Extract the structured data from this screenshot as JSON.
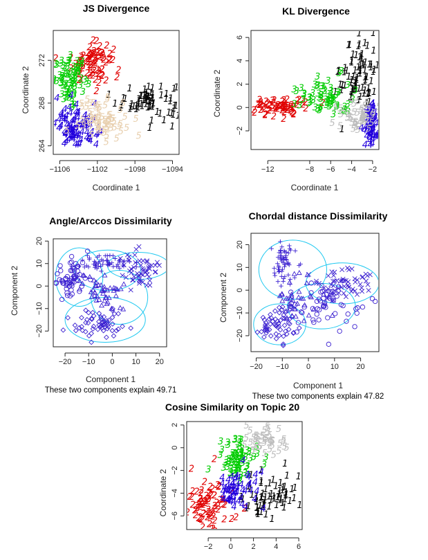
{
  "colors": {
    "1": "#000000",
    "2": "#e00000",
    "3": "#00cc00",
    "4": "#2200dd",
    "5_tan": "#e8cfae",
    "5_grey": "#bdbdbd",
    "clusplot_points": "#3a1fd0",
    "clusplot_bubbles": "#1ec8f0"
  },
  "chart_data": [
    {
      "id": "js",
      "type": "scatter",
      "title": "JS Divergence",
      "xlabel": "Coordinate 1",
      "ylabel": "Coordinate 2",
      "xlim": [
        -1106.7,
        -1093.3
      ],
      "ylim": [
        263.2,
        274.8
      ],
      "xticks": [
        -1106,
        -1102,
        -1098,
        -1094
      ],
      "yticks": [
        264,
        268,
        272
      ],
      "grid": false,
      "markers": "cluster digits",
      "clusters": [
        {
          "label": "1",
          "color_key": "1",
          "cx": -1096.5,
          "cy": 268.3,
          "sx": 1.7,
          "sy": 0.9,
          "n": 70
        },
        {
          "label": "2",
          "color_key": "2",
          "cx": -1102.6,
          "cy": 271.9,
          "sx": 1.1,
          "sy": 0.9,
          "n": 80
        },
        {
          "label": "3",
          "color_key": "3",
          "cx": -1104.8,
          "cy": 270.2,
          "sx": 0.9,
          "sy": 1.0,
          "n": 75
        },
        {
          "label": "4",
          "color_key": "4",
          "cx": -1104.2,
          "cy": 265.8,
          "sx": 1.1,
          "sy": 1.0,
          "n": 85
        },
        {
          "label": "5",
          "color_key": "5_tan",
          "cx": -1101.5,
          "cy": 266.6,
          "sx": 1.3,
          "sy": 0.9,
          "n": 70
        }
      ]
    },
    {
      "id": "kl",
      "type": "scatter",
      "title": "KL Divergence",
      "xlabel": "Coordinate 1",
      "ylabel": "Coordinate 2",
      "xlim": [
        -13.6,
        -1.4
      ],
      "ylim": [
        -3.6,
        6.6
      ],
      "xticks": [
        -12,
        -8,
        -6,
        -4,
        -2
      ],
      "yticks": [
        -2,
        0,
        2,
        4,
        6
      ],
      "grid": false,
      "markers": "cluster digits",
      "clusters": [
        {
          "label": "1",
          "color_key": "1",
          "cx": -3.3,
          "cy": 3.0,
          "sx": 0.9,
          "sy": 1.6,
          "n": 80
        },
        {
          "label": "2",
          "color_key": "2",
          "cx": -11.0,
          "cy": 0.1,
          "sx": 1.5,
          "sy": 0.4,
          "n": 70
        },
        {
          "label": "3",
          "color_key": "3",
          "cx": -6.6,
          "cy": 1.0,
          "sx": 1.3,
          "sy": 0.8,
          "n": 70
        },
        {
          "label": "4",
          "color_key": "4",
          "cx": -2.2,
          "cy": -1.6,
          "sx": 0.4,
          "sy": 1.0,
          "n": 60
        },
        {
          "label": "5",
          "color_key": "5_grey",
          "cx": -3.4,
          "cy": -0.6,
          "sx": 0.8,
          "sy": 0.7,
          "n": 50
        }
      ]
    },
    {
      "id": "angle",
      "type": "scatter",
      "title": "Angle/Arccos Dissimilarity",
      "xlabel": "Component 1",
      "ylabel": "Component 2",
      "subtitle": "These two components explain 49.71",
      "xlim": [
        -25,
        23
      ],
      "ylim": [
        -27,
        21
      ],
      "xticks": [
        -20,
        -10,
        0,
        10,
        20
      ],
      "yticks": [
        -20,
        -10,
        0,
        10,
        20
      ],
      "grid": false,
      "markers": "shapes",
      "clusters": [
        {
          "shape": "circle",
          "cx": -17,
          "cy": 4,
          "sx": 3.5,
          "sy": 4.5,
          "n": 60
        },
        {
          "shape": "plus",
          "cx": -3,
          "cy": 10,
          "sx": 6,
          "sy": 2,
          "n": 60
        },
        {
          "shape": "cross",
          "cx": 12,
          "cy": 7,
          "sx": 4,
          "sy": 4,
          "n": 55
        },
        {
          "shape": "triangle",
          "cx": -5,
          "cy": -3,
          "sx": 5,
          "sy": 4,
          "n": 45
        },
        {
          "shape": "diamond",
          "cx": -5,
          "cy": -17,
          "sx": 6,
          "sy": 3.5,
          "n": 60
        }
      ],
      "bubbles": [
        {
          "cx": -14,
          "cy": 4,
          "rx": 10,
          "ry": 13
        },
        {
          "cx": -2,
          "cy": 7,
          "rx": 14,
          "ry": 9
        },
        {
          "cx": 11,
          "cy": 9,
          "rx": 13,
          "ry": 6
        },
        {
          "cx": 3,
          "cy": -5,
          "rx": 12,
          "ry": 12
        },
        {
          "cx": -3,
          "cy": -15,
          "rx": 17,
          "ry": 10
        }
      ]
    },
    {
      "id": "chordal",
      "type": "scatter",
      "title": "Chordal distance Dissimilarity",
      "xlabel": "Component 1",
      "ylabel": "Component 2",
      "subtitle": "These two components explain 47.82",
      "xlim": [
        -22,
        27
      ],
      "ylim": [
        -27,
        25
      ],
      "xticks": [
        -20,
        -10,
        0,
        10,
        20
      ],
      "yticks": [
        -20,
        -10,
        0,
        10,
        20
      ],
      "grid": false,
      "markers": "shapes",
      "clusters": [
        {
          "shape": "plus",
          "cx": -10,
          "cy": 11,
          "sx": 2.5,
          "sy": 5,
          "n": 60
        },
        {
          "shape": "cross",
          "cx": 14,
          "cy": 3,
          "sx": 6,
          "sy": 4,
          "n": 60
        },
        {
          "shape": "circle",
          "cx": 7,
          "cy": -7,
          "sx": 7,
          "sy": 5,
          "n": 55
        },
        {
          "shape": "triangle",
          "cx": -3,
          "cy": -5,
          "sx": 5,
          "sy": 5,
          "n": 40
        },
        {
          "shape": "diamond",
          "cx": -12,
          "cy": -15,
          "sx": 4,
          "sy": 4,
          "n": 60
        }
      ],
      "bubbles": [
        {
          "cx": -6,
          "cy": 9,
          "rx": 13,
          "ry": 13
        },
        {
          "cx": 13,
          "cy": 3,
          "rx": 14,
          "ry": 9
        },
        {
          "cx": 5,
          "cy": -7,
          "rx": 13,
          "ry": 10
        },
        {
          "cx": -11,
          "cy": -15,
          "rx": 10,
          "ry": 9
        }
      ]
    },
    {
      "id": "cosine",
      "type": "scatter",
      "title": "Cosine Similarity on Topic 20",
      "xlabel": "",
      "ylabel": "Coordinate 2",
      "xlim": [
        -3.9,
        6.3
      ],
      "ylim": [
        -7.2,
        2.3
      ],
      "xticks": [
        -2,
        0,
        2,
        4,
        6
      ],
      "yticks": [
        -6,
        -4,
        -2,
        0,
        2
      ],
      "grid": false,
      "markers": "cluster digits",
      "clusters": [
        {
          "label": "1",
          "color_key": "1",
          "cx": 3.6,
          "cy": -4.2,
          "sx": 1.2,
          "sy": 1.1,
          "n": 70
        },
        {
          "label": "2",
          "color_key": "2",
          "cx": -2.0,
          "cy": -4.8,
          "sx": 1.1,
          "sy": 1.2,
          "n": 75
        },
        {
          "label": "3",
          "color_key": "3",
          "cx": 0.6,
          "cy": -1.0,
          "sx": 0.9,
          "sy": 1.0,
          "n": 75
        },
        {
          "label": "4",
          "color_key": "4",
          "cx": 0.2,
          "cy": -3.6,
          "sx": 0.9,
          "sy": 0.8,
          "n": 55
        },
        {
          "label": "5",
          "color_key": "5_grey",
          "cx": 3.0,
          "cy": 0.6,
          "sx": 1.0,
          "sy": 0.8,
          "n": 45
        }
      ]
    }
  ]
}
